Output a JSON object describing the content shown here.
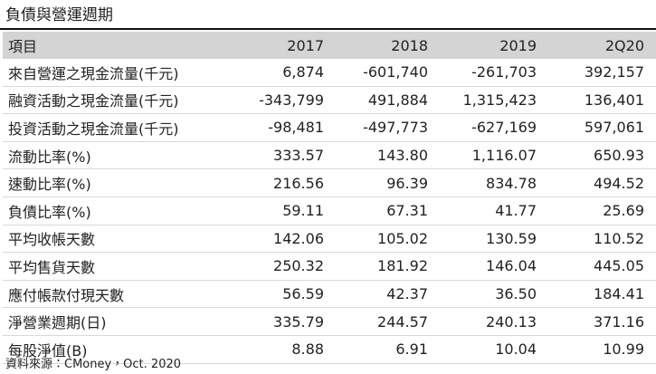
{
  "header": {
    "title": "負債與營運週期"
  },
  "table": {
    "columns": [
      "項目",
      "2017",
      "2018",
      "2019",
      "2Q20"
    ],
    "rows": [
      [
        "來自營運之現金流量(千元)",
        "6,874",
        "-601,740",
        "-261,703",
        "392,157"
      ],
      [
        "融資活動之現金流量(千元)",
        "-343,799",
        "491,884",
        "1,315,423",
        "136,401"
      ],
      [
        "投資活動之現金流量(千元)",
        "-98,481",
        "-497,773",
        "-627,169",
        "597,061"
      ],
      [
        "流動比率(%)",
        "333.57",
        "143.80",
        "1,116.07",
        "650.93"
      ],
      [
        "速動比率(%)",
        "216.56",
        "96.39",
        "834.78",
        "494.52"
      ],
      [
        "負債比率(%)",
        "59.11",
        "67.31",
        "41.77",
        "25.69"
      ],
      [
        "平均收帳天數",
        "142.06",
        "105.02",
        "130.59",
        "110.52"
      ],
      [
        "平均售貨天數",
        "250.32",
        "181.92",
        "146.04",
        "445.05"
      ],
      [
        "應付帳款付現天數",
        "56.59",
        "42.37",
        "36.50",
        "184.41"
      ],
      [
        "淨營業週期(日)",
        "335.79",
        "244.57",
        "240.13",
        "371.16"
      ],
      [
        "每股淨值(B)",
        "8.88",
        "6.91",
        "10.04",
        "10.99"
      ]
    ]
  },
  "footer": {
    "source": "資料來源：CMoney，Oct. 2020"
  }
}
